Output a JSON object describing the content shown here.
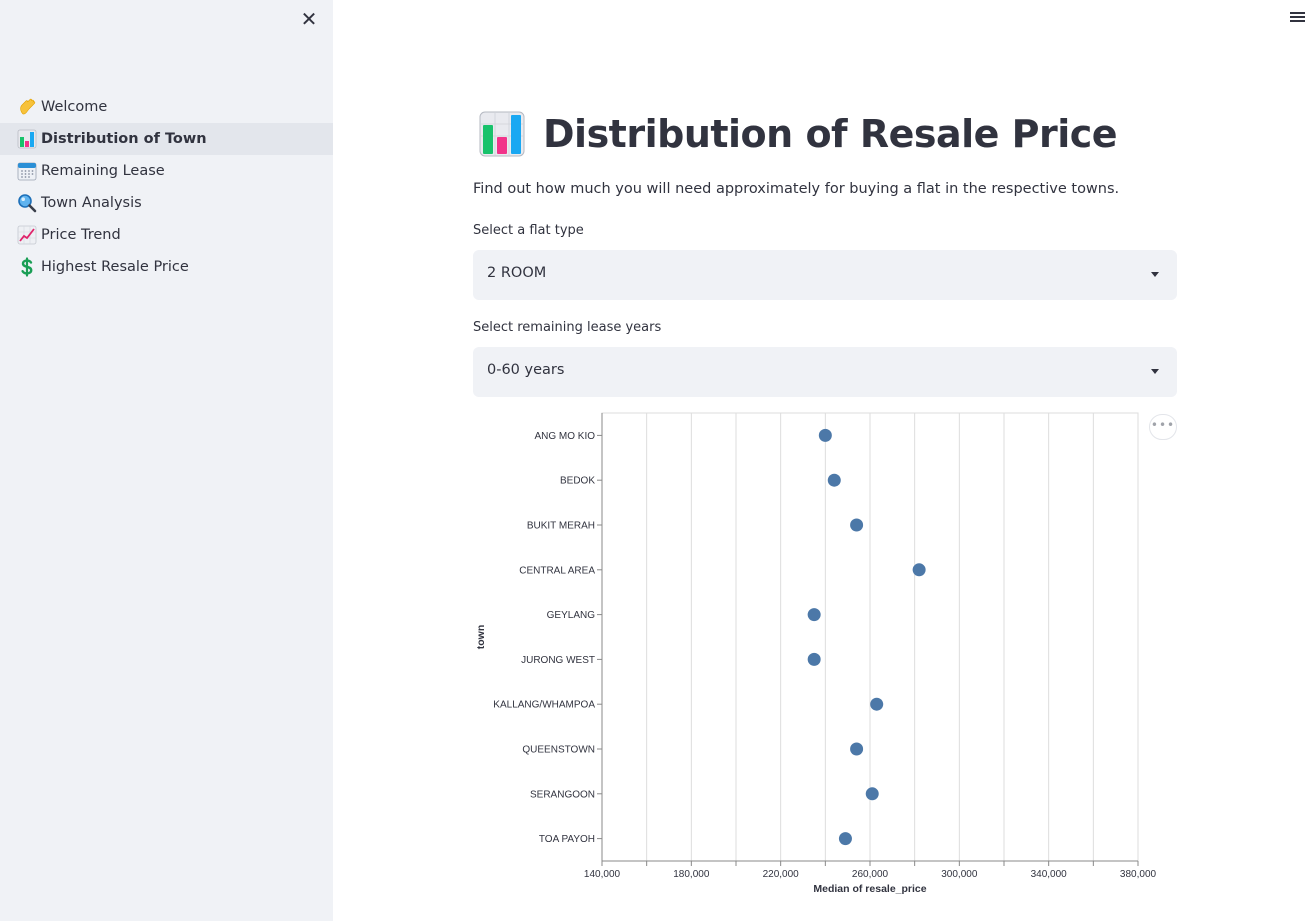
{
  "sidebar": {
    "close_label": "✕",
    "items": [
      {
        "label": "Welcome",
        "icon": "waving-hand-icon",
        "active": false
      },
      {
        "label": "Distribution of Town",
        "icon": "bar-chart-icon",
        "active": true
      },
      {
        "label": "Remaining Lease",
        "icon": "calendar-icon",
        "active": false
      },
      {
        "label": "Town Analysis",
        "icon": "magnifying-glass-icon",
        "active": false
      },
      {
        "label": "Price Trend",
        "icon": "chart-increasing-icon",
        "active": false
      },
      {
        "label": "Highest Resale Price",
        "icon": "dollar-sign-icon",
        "active": false
      }
    ]
  },
  "main": {
    "title": "Distribution of Resale Price",
    "subtitle": "Find out how much you will need approximately for buying a flat in the respective towns.",
    "flat_type": {
      "label": "Select a flat type",
      "value": "2 ROOM"
    },
    "lease_years": {
      "label": "Select remaining lease years",
      "value": "0-60 years"
    }
  },
  "chart_data": {
    "type": "scatter",
    "title": "",
    "xlabel": "Median of resale_price",
    "ylabel": "town",
    "xlim": [
      140000,
      380000
    ],
    "x_ticks": [
      140000,
      180000,
      220000,
      260000,
      300000,
      340000,
      380000
    ],
    "x_tick_labels": [
      "140,000",
      "180,000",
      "220,000",
      "260,000",
      "300,000",
      "340,000",
      "380,000"
    ],
    "grid": true,
    "point_color": "#4c78a8",
    "categories": [
      "ANG MO KIO",
      "BEDOK",
      "BUKIT MERAH",
      "CENTRAL AREA",
      "GEYLANG",
      "JURONG WEST",
      "KALLANG/WHAMPOA",
      "QUEENSTOWN",
      "SERANGOON",
      "TOA PAYOH"
    ],
    "values": [
      240000,
      244000,
      254000,
      282000,
      235000,
      235000,
      263000,
      254000,
      261000,
      249000
    ]
  },
  "colors": {
    "sidebar_bg": "#f0f2f6",
    "text": "#31333f",
    "point": "#4c78a8"
  }
}
